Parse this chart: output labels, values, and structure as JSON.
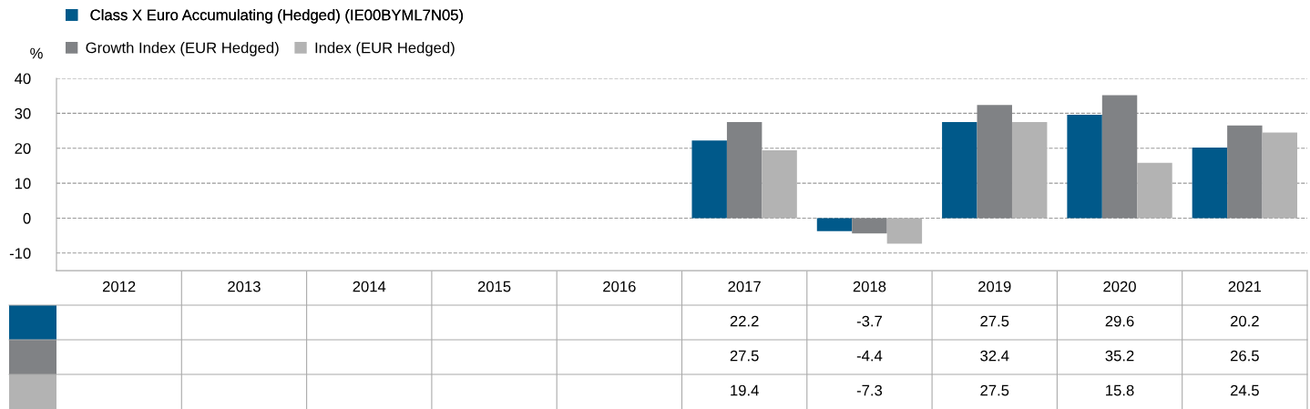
{
  "chart_data": {
    "type": "bar",
    "ylabel": "%",
    "categories": [
      "2012",
      "2013",
      "2014",
      "2015",
      "2016",
      "2017",
      "2018",
      "2019",
      "2020",
      "2021"
    ],
    "series": [
      {
        "name": "Class X Euro Accumulating (Hedged) (IE00BYML7N05)",
        "color": "#00598a",
        "values": [
          null,
          null,
          null,
          null,
          null,
          22.2,
          -3.7,
          27.5,
          29.6,
          20.2
        ]
      },
      {
        "name": "Growth Index (EUR Hedged)",
        "color": "#808285",
        "values": [
          null,
          null,
          null,
          null,
          null,
          27.5,
          -4.4,
          32.4,
          35.2,
          26.5
        ]
      },
      {
        "name": "Index (EUR Hedged)",
        "color": "#b3b3b3",
        "values": [
          null,
          null,
          null,
          null,
          null,
          19.4,
          -7.3,
          27.5,
          15.8,
          24.5
        ]
      }
    ],
    "ylim": [
      -15,
      40
    ],
    "yticks": [
      -10,
      0,
      10,
      20,
      30,
      40
    ],
    "grid": "y",
    "legend": "top left",
    "data_labels": true
  }
}
